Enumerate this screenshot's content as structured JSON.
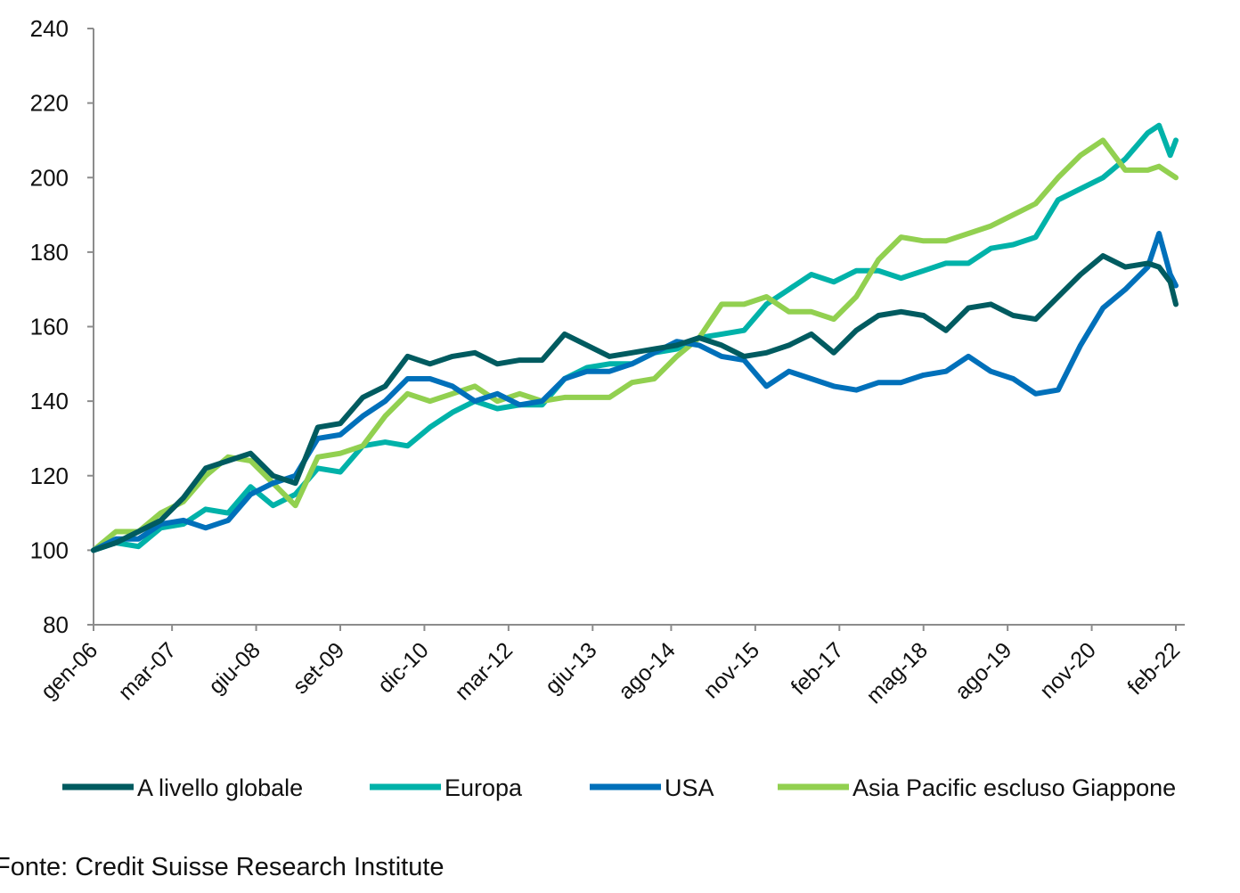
{
  "chart_data": {
    "type": "line",
    "title": "",
    "xlabel": "",
    "ylabel": "",
    "ylim": [
      80,
      240
    ],
    "yticks": [
      "80",
      "100",
      "120",
      "140",
      "160",
      "180",
      "200",
      "220",
      "240"
    ],
    "xlim": [
      "2006-01",
      "2022-02"
    ],
    "xticks": [
      {
        "date": "2006-01",
        "label": "gen-06"
      },
      {
        "date": "2007-03",
        "label": "mar-07"
      },
      {
        "date": "2008-06",
        "label": "giu-08"
      },
      {
        "date": "2009-09",
        "label": "set-09"
      },
      {
        "date": "2010-12",
        "label": "dic-10"
      },
      {
        "date": "2012-03",
        "label": "mar-12"
      },
      {
        "date": "2013-06",
        "label": "giu-13"
      },
      {
        "date": "2014-08",
        "label": "ago-14"
      },
      {
        "date": "2015-11",
        "label": "nov-15"
      },
      {
        "date": "2017-02",
        "label": "feb-17"
      },
      {
        "date": "2018-05",
        "label": "mag-18"
      },
      {
        "date": "2019-08",
        "label": "ago-19"
      },
      {
        "date": "2020-11",
        "label": "nov-20"
      },
      {
        "date": "2022-02",
        "label": "feb-22"
      }
    ],
    "grid": false,
    "legend_position": "bottom",
    "x": [
      "2006-01",
      "2006-05",
      "2006-09",
      "2007-01",
      "2007-05",
      "2007-09",
      "2008-01",
      "2008-05",
      "2008-09",
      "2009-01",
      "2009-05",
      "2009-09",
      "2010-01",
      "2010-05",
      "2010-09",
      "2011-01",
      "2011-05",
      "2011-09",
      "2012-01",
      "2012-05",
      "2012-09",
      "2013-01",
      "2013-05",
      "2013-09",
      "2014-01",
      "2014-05",
      "2014-09",
      "2015-01",
      "2015-05",
      "2015-09",
      "2016-01",
      "2016-05",
      "2016-09",
      "2017-01",
      "2017-05",
      "2017-09",
      "2018-01",
      "2018-05",
      "2018-09",
      "2019-01",
      "2019-05",
      "2019-09",
      "2020-01",
      "2020-05",
      "2020-09",
      "2021-01",
      "2021-05",
      "2021-09",
      "2021-11",
      "2022-01",
      "2022-02"
    ],
    "series": [
      {
        "name": "A livello globale",
        "color": "#005B60",
        "values": [
          100,
          102,
          105,
          108,
          114,
          122,
          124,
          126,
          120,
          118,
          133,
          134,
          141,
          144,
          152,
          150,
          152,
          153,
          150,
          151,
          151,
          158,
          155,
          152,
          153,
          154,
          155,
          157,
          155,
          152,
          153,
          155,
          158,
          153,
          159,
          163,
          164,
          163,
          159,
          165,
          166,
          163,
          162,
          168,
          174,
          179,
          176,
          177,
          176,
          172,
          166
        ]
      },
      {
        "name": "Europa",
        "color": "#00B2A9",
        "values": [
          100,
          102,
          101,
          106,
          107,
          111,
          110,
          117,
          112,
          115,
          122,
          121,
          128,
          129,
          128,
          133,
          137,
          140,
          138,
          139,
          139,
          146,
          149,
          150,
          150,
          153,
          154,
          157,
          158,
          159,
          166,
          170,
          174,
          172,
          175,
          175,
          173,
          175,
          177,
          177,
          181,
          182,
          184,
          194,
          197,
          200,
          205,
          212,
          214,
          206,
          210
        ]
      },
      {
        "name": "USA",
        "color": "#0070BA",
        "values": [
          100,
          103,
          103,
          107,
          108,
          106,
          108,
          115,
          118,
          120,
          130,
          131,
          136,
          140,
          146,
          146,
          144,
          140,
          142,
          139,
          140,
          146,
          148,
          148,
          150,
          153,
          156,
          155,
          152,
          151,
          144,
          148,
          146,
          144,
          143,
          145,
          145,
          147,
          148,
          152,
          148,
          146,
          142,
          143,
          155,
          165,
          170,
          176,
          185,
          174,
          171
        ]
      },
      {
        "name": "Asia Pacific escluso Giappone",
        "color": "#92D050",
        "values": [
          100,
          105,
          105,
          110,
          113,
          120,
          125,
          124,
          118,
          112,
          125,
          126,
          128,
          136,
          142,
          140,
          142,
          144,
          140,
          142,
          140,
          141,
          141,
          141,
          145,
          146,
          152,
          157,
          166,
          166,
          168,
          164,
          164,
          162,
          168,
          178,
          184,
          183,
          183,
          185,
          187,
          190,
          193,
          200,
          206,
          210,
          202,
          202,
          203,
          201,
          200
        ]
      }
    ]
  },
  "source": "Fonte: Credit Suisse Research Institute"
}
